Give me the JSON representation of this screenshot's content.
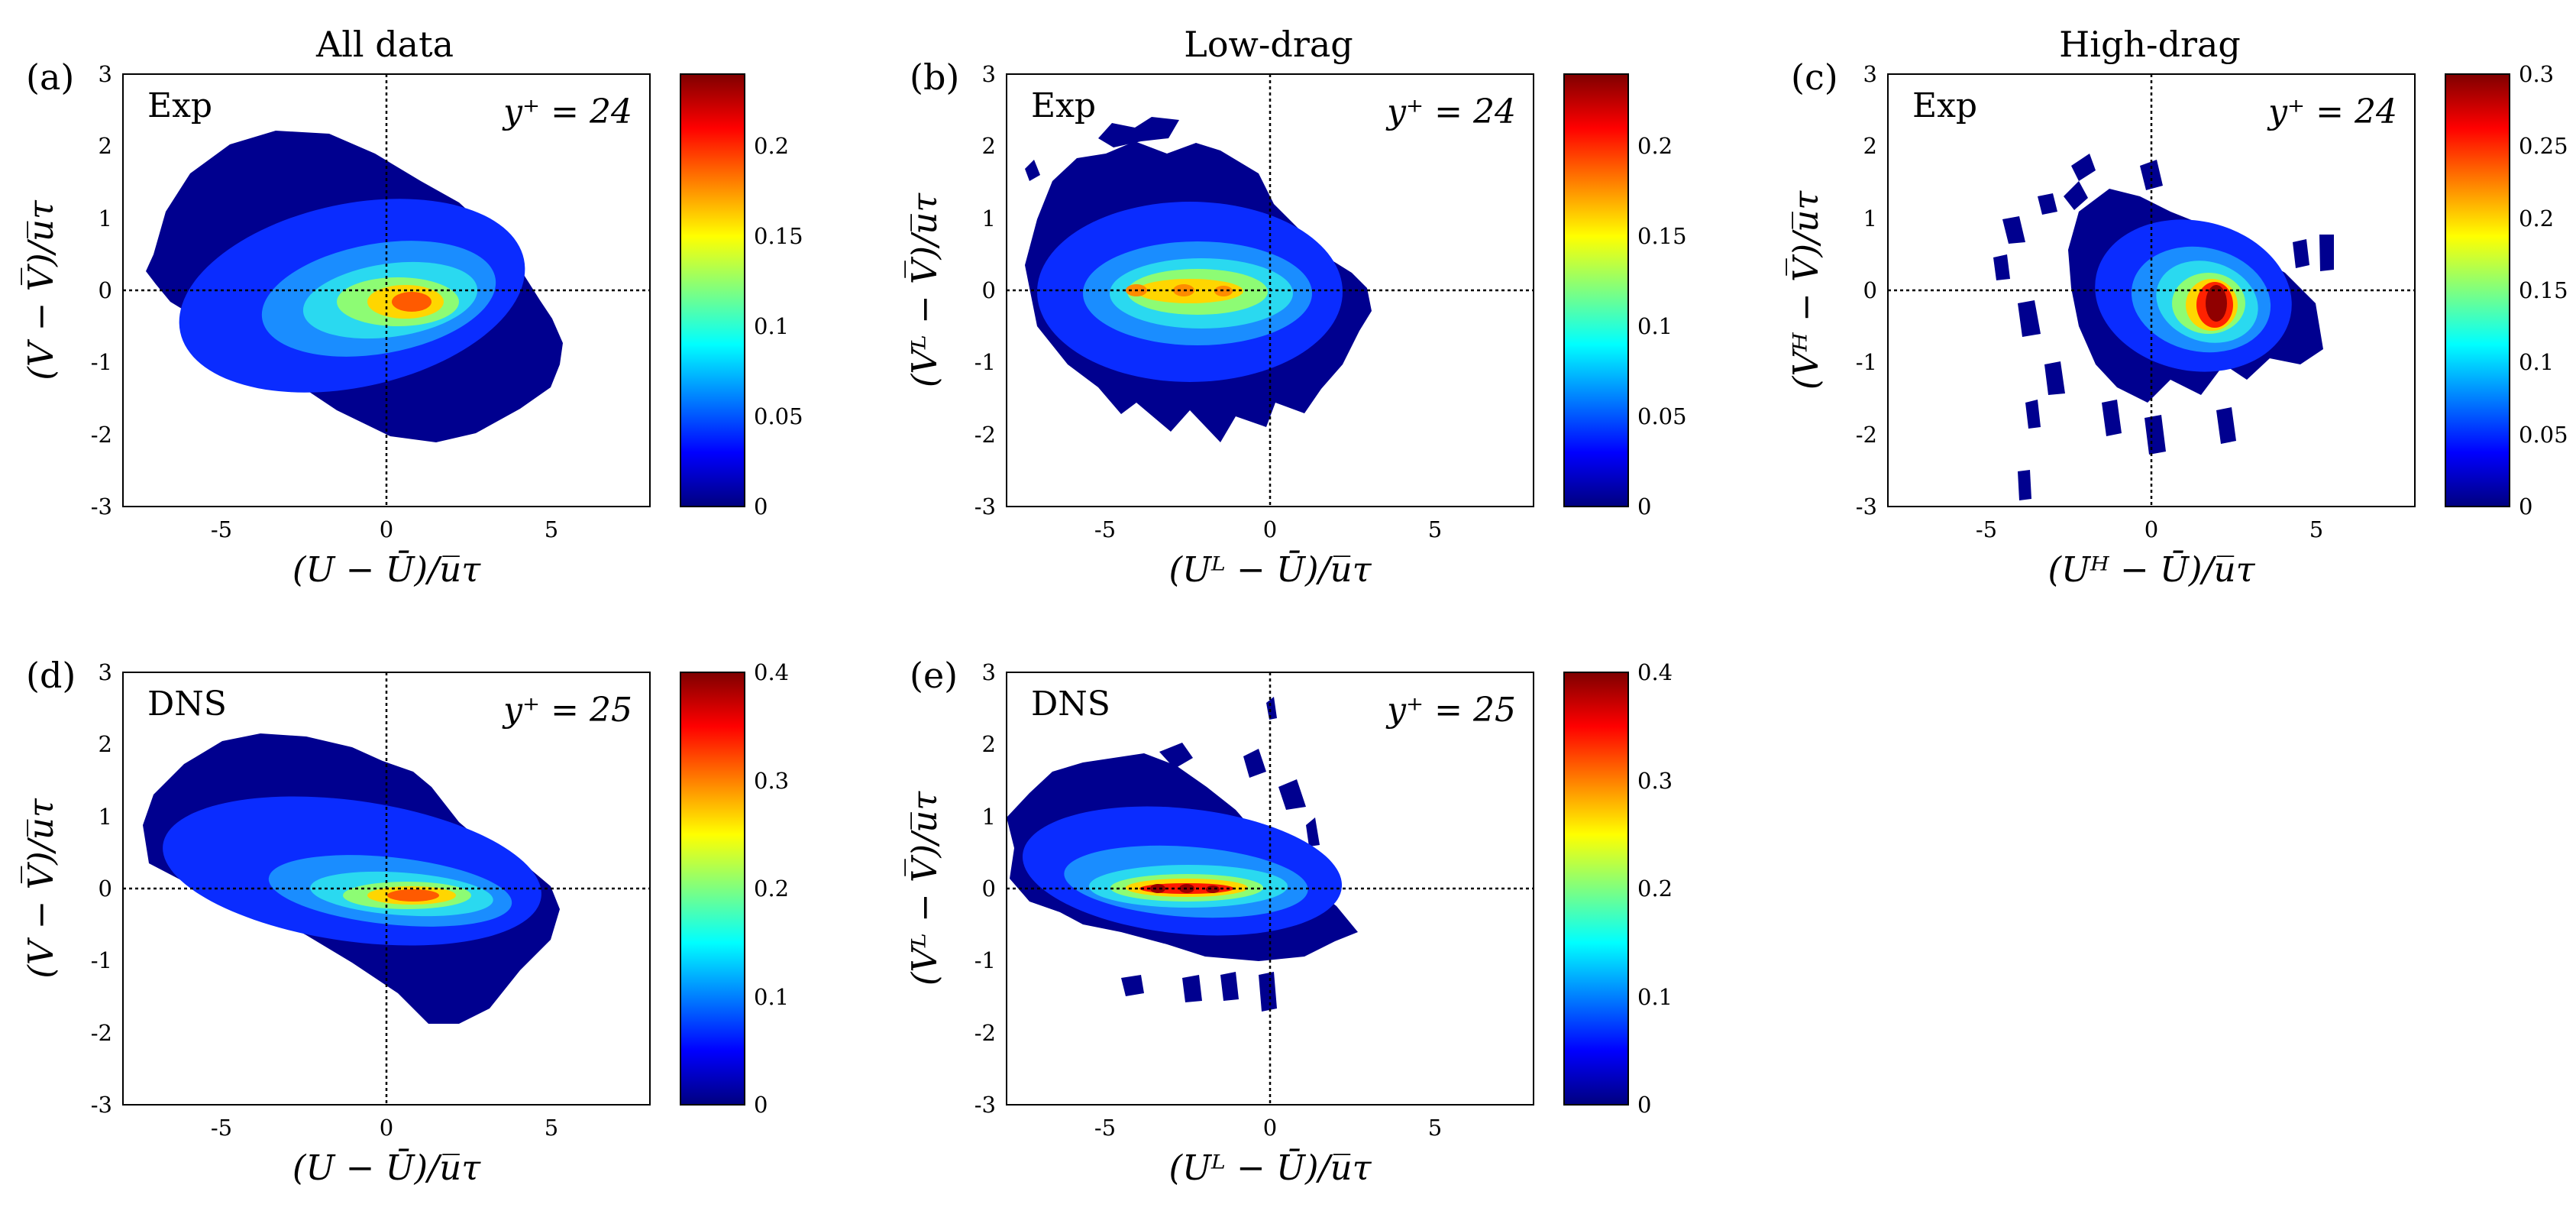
{
  "column_titles": [
    "All data",
    "Low-drag",
    "High-drag"
  ],
  "chart_data": [
    {
      "type": "heatmap",
      "panel": "(a)",
      "tag": "Exp",
      "annotation": "y⁺ = 24",
      "xlabel": "(U − Ū)/u̅τ",
      "ylabel": "(V − V̅)/u̅τ",
      "xlim": [
        -8,
        8
      ],
      "ylim": [
        -3,
        3
      ],
      "xticks": [
        "-5",
        "0",
        "5"
      ],
      "yticks": [
        "-3",
        "-2",
        "-1",
        "0",
        "1",
        "2",
        "3"
      ],
      "colorbar": {
        "min": 0,
        "max": 0.24,
        "ticks": [
          "0",
          "0.05",
          "0.1",
          "0.15",
          "0.2"
        ],
        "tick_values": [
          0,
          0.05,
          0.1,
          0.15,
          0.2
        ]
      },
      "peak": {
        "x": 1.3,
        "y": -0.2,
        "value": 0.24
      }
    },
    {
      "type": "heatmap",
      "panel": "(b)",
      "tag": "Exp",
      "annotation": "y⁺ = 24",
      "xlabel": "(Uᴸ − Ū)/u̅τ",
      "ylabel": "(Vᴸ − V̅)/u̅τ",
      "xlim": [
        -8,
        8
      ],
      "ylim": [
        -3,
        3
      ],
      "xticks": [
        "-5",
        "0",
        "5"
      ],
      "yticks": [
        "-3",
        "-2",
        "-1",
        "0",
        "1",
        "2",
        "3"
      ],
      "colorbar": {
        "min": 0,
        "max": 0.24,
        "ticks": [
          "0",
          "0.05",
          "0.1",
          "0.15",
          "0.2"
        ],
        "tick_values": [
          0,
          0.05,
          0.1,
          0.15,
          0.2
        ]
      },
      "peak": {
        "x": -2.5,
        "y": 0.0,
        "value": 0.17
      }
    },
    {
      "type": "heatmap",
      "panel": "(c)",
      "tag": "Exp",
      "annotation": "y⁺ = 24",
      "xlabel": "(Uᴴ − Ū)/u̅τ",
      "ylabel": "(Vᴴ − V̅)/u̅τ",
      "xlim": [
        -8,
        8
      ],
      "ylim": [
        -3,
        3
      ],
      "xticks": [
        "-5",
        "0",
        "5"
      ],
      "yticks": [
        "-3",
        "-2",
        "-1",
        "0",
        "1",
        "2",
        "3"
      ],
      "colorbar": {
        "min": 0,
        "max": 0.3,
        "ticks": [
          "0",
          "0.05",
          "0.1",
          "0.15",
          "0.2",
          "0.25",
          "0.3"
        ],
        "tick_values": [
          0,
          0.05,
          0.1,
          0.15,
          0.2,
          0.25,
          0.3
        ]
      },
      "peak": {
        "x": 2.0,
        "y": -0.3,
        "value": 0.3
      }
    },
    {
      "type": "heatmap",
      "panel": "(d)",
      "tag": "DNS",
      "annotation": "y⁺ = 25",
      "xlabel": "(U − Ū)/u̅τ",
      "ylabel": "(V − V̅)/u̅τ",
      "xlim": [
        -8,
        8
      ],
      "ylim": [
        -3,
        3
      ],
      "xticks": [
        "-5",
        "0",
        "5"
      ],
      "yticks": [
        "-3",
        "-2",
        "-1",
        "0",
        "1",
        "2",
        "3"
      ],
      "colorbar": {
        "min": 0,
        "max": 0.4,
        "ticks": [
          "0",
          "0.1",
          "0.2",
          "0.3",
          "0.4"
        ],
        "tick_values": [
          0,
          0.1,
          0.2,
          0.3,
          0.4
        ]
      },
      "peak": {
        "x": 1.2,
        "y": -0.2,
        "value": 0.4
      }
    },
    {
      "type": "heatmap",
      "panel": "(e)",
      "tag": "DNS",
      "annotation": "y⁺ = 25",
      "xlabel": "(Uᴸ − Ū)/u̅τ",
      "ylabel": "(Vᴸ − V̅)/u̅τ",
      "xlim": [
        -8,
        8
      ],
      "ylim": [
        -3,
        3
      ],
      "xticks": [
        "-5",
        "0",
        "5"
      ],
      "yticks": [
        "-3",
        "-2",
        "-1",
        "0",
        "1",
        "2",
        "3"
      ],
      "colorbar": {
        "min": 0,
        "max": 0.4,
        "ticks": [
          "0",
          "0.1",
          "0.2",
          "0.3",
          "0.4"
        ],
        "tick_values": [
          0,
          0.1,
          0.2,
          0.3,
          0.4
        ]
      },
      "peak": {
        "x": -1.8,
        "y": 0.0,
        "value": 0.4
      }
    }
  ]
}
